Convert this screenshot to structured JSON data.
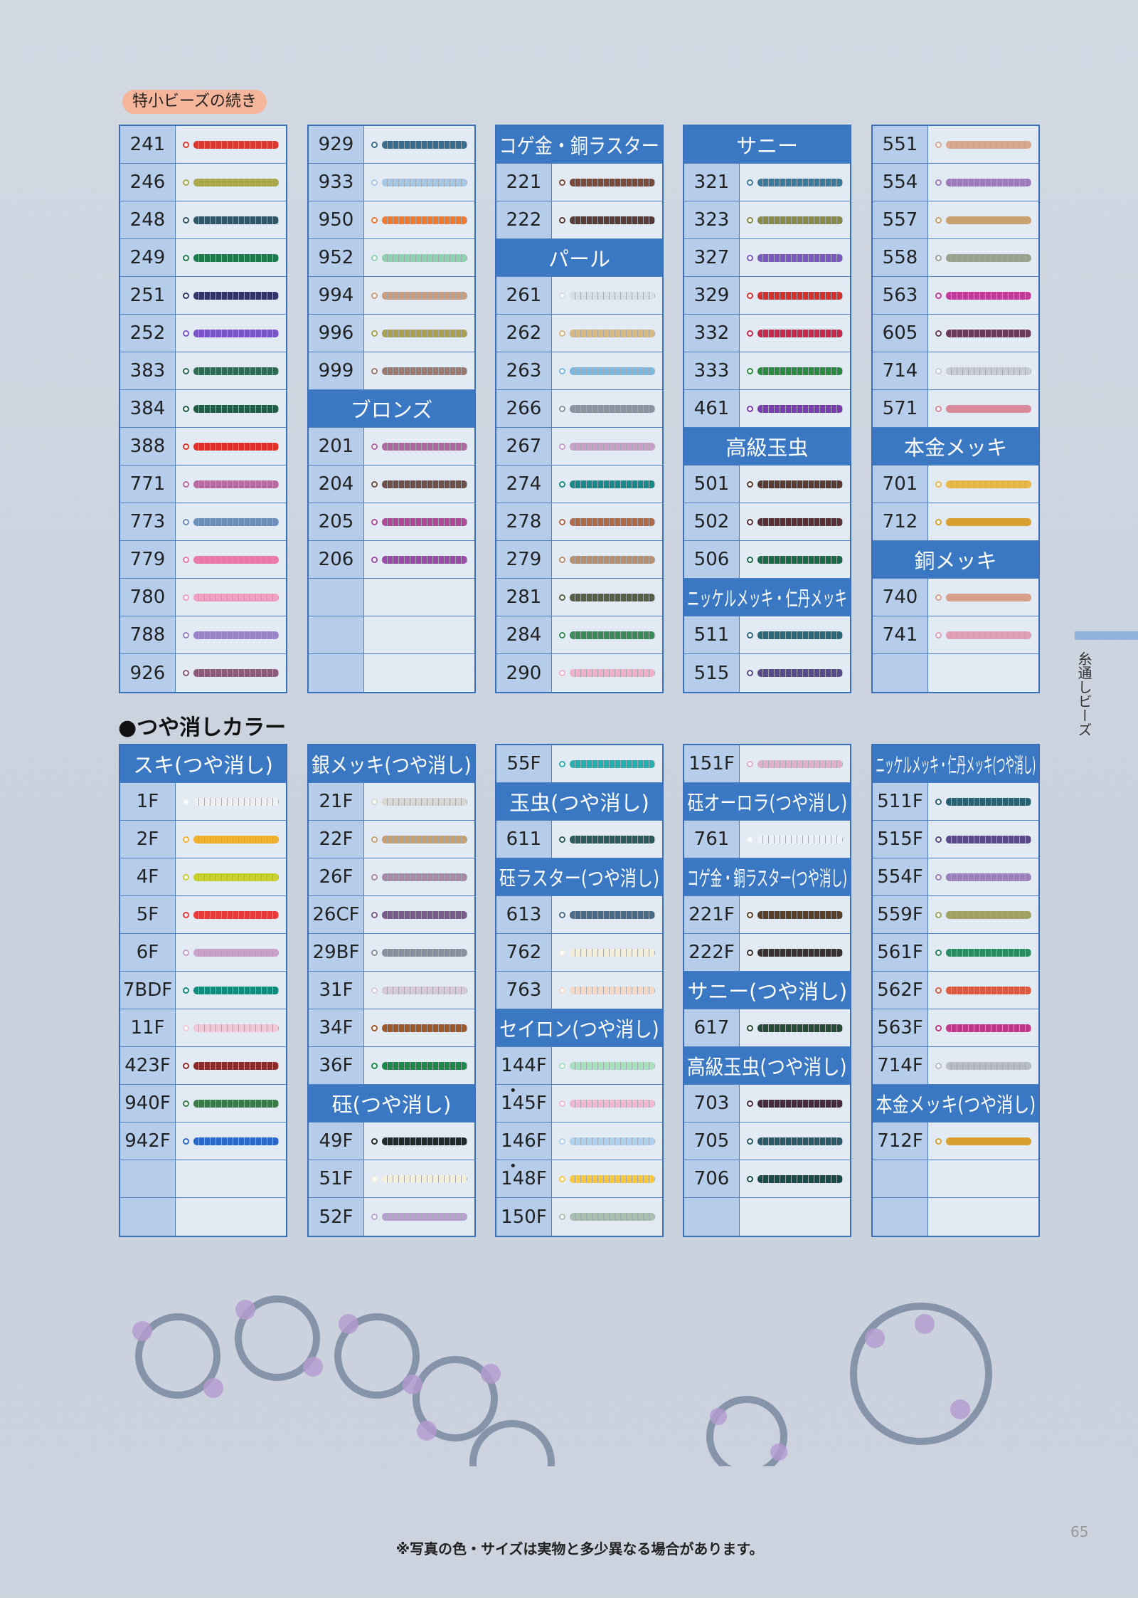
{
  "sections": [
    {
      "label": "特小ビーズの続き",
      "columns": [
        [
          {
            "code": "241",
            "color": "#d9392e"
          },
          {
            "code": "246",
            "color": "#a8a84a"
          },
          {
            "code": "248",
            "color": "#2f5566"
          },
          {
            "code": "249",
            "color": "#1e7a4c"
          },
          {
            "code": "251",
            "color": "#2f3566"
          },
          {
            "code": "252",
            "color": "#7a55c8"
          },
          {
            "code": "383",
            "color": "#2e6a52"
          },
          {
            "code": "384",
            "color": "#1f5b45"
          },
          {
            "code": "388",
            "color": "#e0302a"
          },
          {
            "code": "771",
            "color": "#b66aa0"
          },
          {
            "code": "773",
            "color": "#6b8fb8"
          },
          {
            "code": "779",
            "color": "#e878a8"
          },
          {
            "code": "780",
            "color": "#eea0c0"
          },
          {
            "code": "788",
            "color": "#9a84c8"
          },
          {
            "code": "926",
            "color": "#8a5a78"
          }
        ],
        [
          {
            "code": "929",
            "color": "#3a6e8e"
          },
          {
            "code": "933",
            "color": "#a6c6e6"
          },
          {
            "code": "950",
            "color": "#f07a30"
          },
          {
            "code": "952",
            "color": "#8ed0b0"
          },
          {
            "code": "994",
            "color": "#c89c7c"
          },
          {
            "code": "996",
            "color": "#a8a050"
          },
          {
            "code": "999",
            "color": "#9a7a70"
          },
          {
            "heading": "ブロンズ"
          },
          {
            "code": "201",
            "color": "#b068a0"
          },
          {
            "code": "204",
            "color": "#6e5048"
          },
          {
            "code": "205",
            "color": "#b04a98"
          },
          {
            "code": "206",
            "color": "#9a4aa8"
          },
          null,
          null,
          null
        ],
        [
          {
            "heading": "コゲ金・銅ラスター"
          },
          {
            "code": "221",
            "color": "#7a4a3a"
          },
          {
            "code": "222",
            "color": "#5a3a36"
          },
          {
            "heading": "パール"
          },
          {
            "code": "261",
            "color": "#d8dee8"
          },
          {
            "code": "262",
            "color": "#d6b880"
          },
          {
            "code": "263",
            "color": "#7ab8e0"
          },
          {
            "code": "266",
            "color": "#8a94a0"
          },
          {
            "code": "267",
            "color": "#c8a0c8"
          },
          {
            "code": "274",
            "color": "#1a8a8a"
          },
          {
            "code": "278",
            "color": "#b06a48"
          },
          {
            "code": "279",
            "color": "#b89070"
          },
          {
            "code": "281",
            "color": "#5a6048"
          },
          {
            "code": "284",
            "color": "#3a8a5a"
          },
          {
            "code": "290",
            "color": "#f0b0c8"
          }
        ],
        [
          {
            "heading": "サニー"
          },
          {
            "code": "321",
            "color": "#3a7a9a"
          },
          {
            "code": "323",
            "color": "#8a8a48"
          },
          {
            "code": "327",
            "color": "#7a5ac0"
          },
          {
            "code": "329",
            "color": "#d83030"
          },
          {
            "code": "332",
            "color": "#c8284a"
          },
          {
            "code": "333",
            "color": "#2a8a40"
          },
          {
            "code": "461",
            "color": "#7a3ab0"
          },
          {
            "heading": "高級玉虫"
          },
          {
            "code": "501",
            "color": "#5a3a30"
          },
          {
            "code": "502",
            "color": "#5a3036"
          },
          {
            "code": "506",
            "color": "#1a6a48"
          },
          {
            "heading": "ニッケルメッキ・仁丹メッキ"
          },
          {
            "code": "511",
            "color": "#2a6a78"
          },
          {
            "code": "515",
            "color": "#5a4a8a"
          }
        ],
        [
          {
            "code": "551",
            "color": "#d8a890"
          },
          {
            "code": "554",
            "color": "#9a7ab8"
          },
          {
            "code": "557",
            "color": "#c8a070"
          },
          {
            "code": "558",
            "color": "#9aa090"
          },
          {
            "code": "563",
            "color": "#c03a98"
          },
          {
            "code": "605",
            "color": "#6a3a5a"
          },
          {
            "code": "714",
            "color": "#c8ccd4"
          },
          {
            "code": "571",
            "color": "#d88a9a"
          },
          {
            "heading": "本金メッキ"
          },
          {
            "code": "701",
            "color": "#e8b848"
          },
          {
            "code": "712",
            "color": "#d8a030"
          },
          {
            "heading": "銅メッキ"
          },
          {
            "code": "740",
            "color": "#d8a08a"
          },
          {
            "code": "741",
            "color": "#e0a0b8"
          },
          null
        ]
      ]
    },
    {
      "label": "●つや消しカラー",
      "columns": [
        [
          {
            "heading": "スキ(つや消し)"
          },
          {
            "code": "1F",
            "color": "#eef0f2"
          },
          {
            "code": "2F",
            "color": "#f0b030"
          },
          {
            "code": "4F",
            "color": "#c8d030"
          },
          {
            "code": "5F",
            "color": "#e83a3a"
          },
          {
            "code": "6F",
            "color": "#c8a0c8"
          },
          {
            "code": "7BDF",
            "color": "#108a78"
          },
          {
            "code": "11F",
            "color": "#f0c8d8"
          },
          {
            "code": "423F",
            "color": "#8a2a2a"
          },
          {
            "code": "940F",
            "color": "#3a7a48"
          },
          {
            "code": "942F",
            "color": "#2a68c8"
          },
          null,
          null
        ],
        [
          {
            "heading": "銀メッキ(つや消し)"
          },
          {
            "code": "21F",
            "color": "#d8d8d0"
          },
          {
            "code": "22F",
            "color": "#c8a070"
          },
          {
            "code": "26F",
            "color": "#a888a8"
          },
          {
            "code": "26CF",
            "color": "#7a5a8a"
          },
          {
            "code": "29BF",
            "color": "#8890a0"
          },
          {
            "code": "31F",
            "color": "#d8c8d8"
          },
          {
            "code": "34F",
            "color": "#a0582a"
          },
          {
            "code": "36F",
            "color": "#1a8a48"
          },
          {
            "heading": "砡(つや消し)"
          },
          {
            "code": "49F",
            "color": "#202a28"
          },
          {
            "code": "51F",
            "color": "#f4f0dc"
          },
          {
            "code": "52F",
            "color": "#b8a0d0"
          }
        ],
        [
          {
            "code": "55F",
            "color": "#28b0b0"
          },
          {
            "heading": "玉虫(つや消し)"
          },
          {
            "code": "611",
            "color": "#2a5a5a"
          },
          {
            "heading": "砡ラスター(つや消し)"
          },
          {
            "code": "613",
            "color": "#4a6a8a"
          },
          {
            "code": "762",
            "color": "#f4ecd8"
          },
          {
            "code": "763",
            "color": "#f4d8c8"
          },
          {
            "heading": "セイロン(つや消し)"
          },
          {
            "code": "144F",
            "color": "#a8e0c0"
          },
          {
            "mark": "•",
            "code": "145F",
            "color": "#f0b8d0"
          },
          {
            "code": "146F",
            "color": "#b0d0f0"
          },
          {
            "mark": "•",
            "code": "148F",
            "color": "#f8c840"
          },
          {
            "code": "150F",
            "color": "#a8c0b0"
          }
        ],
        [
          {
            "code": "151F",
            "color": "#e0b0c8"
          },
          {
            "heading": "砡オーロラ(つや消し)"
          },
          {
            "code": "761",
            "color": "#eef2f8"
          },
          {
            "heading": "コゲ金・銅ラスター(つや消し)"
          },
          {
            "code": "221F",
            "color": "#5a4028"
          },
          {
            "code": "222F",
            "color": "#3a3030"
          },
          {
            "heading": "サニー(つや消し)"
          },
          {
            "code": "617",
            "color": "#2a4a38"
          },
          {
            "heading": "高級玉虫(つや消し)"
          },
          {
            "code": "703",
            "color": "#4a2a40"
          },
          {
            "code": "705",
            "color": "#2a5a68"
          },
          {
            "code": "706",
            "color": "#1a4a48"
          },
          null
        ],
        [
          {
            "heading": "ニッケルメッキ・仁丹メッキ(つや消し)"
          },
          {
            "code": "511F",
            "color": "#2a6070"
          },
          {
            "code": "515F",
            "color": "#5a4a88"
          },
          {
            "code": "554F",
            "color": "#9a80b8"
          },
          {
            "code": "559F",
            "color": "#a0a060"
          },
          {
            "code": "561F",
            "color": "#2a8a60"
          },
          {
            "code": "562F",
            "color": "#d85a40"
          },
          {
            "code": "563F",
            "color": "#c0388a"
          },
          {
            "code": "714F",
            "color": "#b8bcc4"
          },
          {
            "heading": "本金メッキ(つや消し)"
          },
          {
            "code": "712F",
            "color": "#d8a030"
          },
          null,
          null
        ]
      ]
    }
  ],
  "side_tab": "糸通しビーズ",
  "page_number": "65",
  "footnote": "※写真の色・サイズは実物と多少異なる場合があります。"
}
